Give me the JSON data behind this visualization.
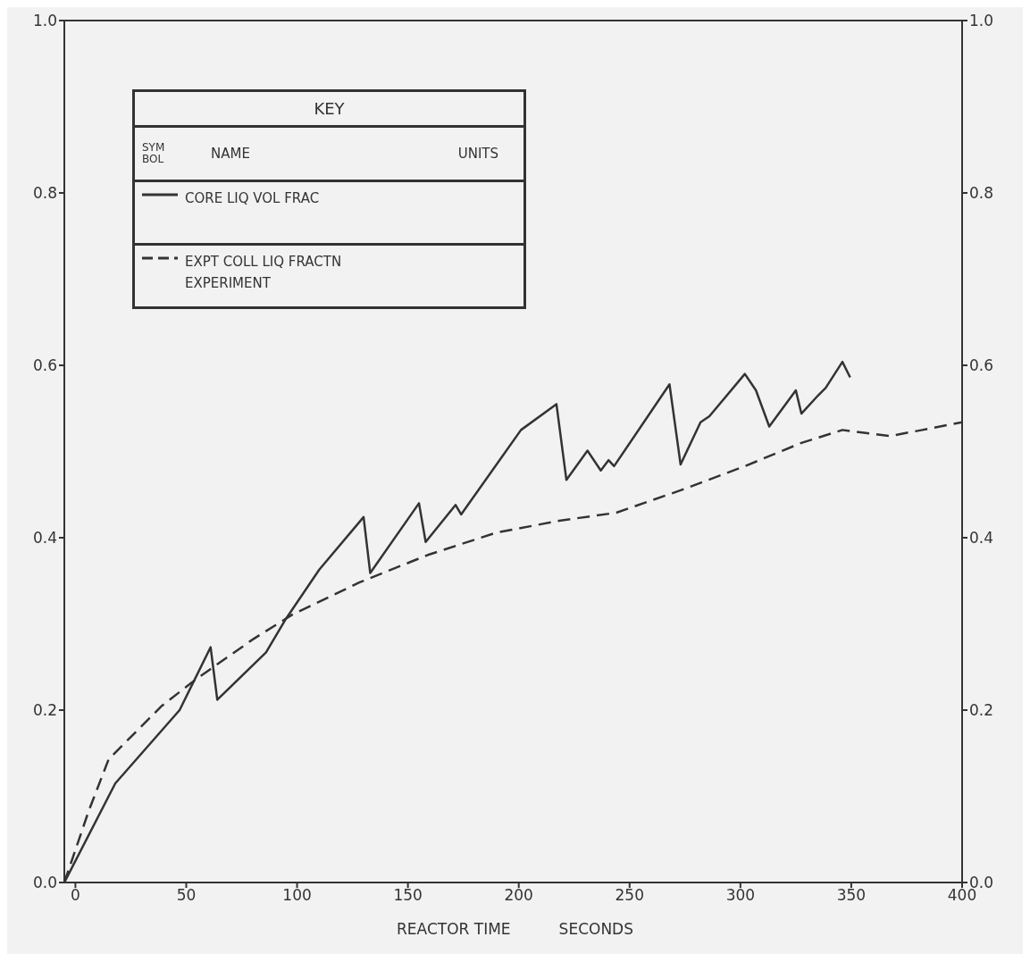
{
  "chart_data": {
    "type": "line",
    "xlabel": "REACTOR TIME          SECONDS",
    "legend_title": "KEY",
    "legend": "top left",
    "marker": "none",
    "annotations": [
      "SYMBOL",
      "NAME",
      "UNITS"
    ],
    "xlim": [
      -5,
      400
    ],
    "xticks": [
      0,
      50,
      100,
      150,
      200,
      250,
      300,
      350,
      400
    ],
    "ylim": [
      0,
      1
    ],
    "yticks": [
      {
        "value": 0,
        "label": "0.0"
      },
      {
        "value": 0.2,
        "label": "0.2"
      },
      {
        "value": 0.4,
        "label": "0.4"
      },
      {
        "value": 0.6,
        "label": "0.6"
      },
      {
        "value": 0.8,
        "label": "0.8"
      },
      {
        "value": 1,
        "label": "1.0"
      }
    ],
    "y2lim": [
      0,
      1
    ],
    "y2ticks": [
      {
        "value": 0,
        "label": "0.0"
      },
      {
        "value": 0.2,
        "label": "0.2"
      },
      {
        "value": 0.4,
        "label": "0.4"
      },
      {
        "value": 0.6,
        "label": "0.6"
      },
      {
        "value": 0.8,
        "label": "0.8"
      },
      {
        "value": 1,
        "label": "1.0"
      }
    ],
    "series": [
      {
        "name": "CORE LIQ VOL FRAC",
        "color": "#333333",
        "line_style": "solid",
        "x": [
          -5,
          18,
          47,
          61,
          64,
          86,
          95,
          110,
          130,
          133,
          155,
          158,
          171.5,
          174,
          201,
          217,
          221.5,
          231,
          237,
          240.5,
          243,
          268,
          273,
          282,
          286,
          302,
          307,
          313,
          325,
          327.5,
          335,
          338.5,
          346,
          349.5
        ],
        "values": [
          0,
          0.115,
          0.2,
          0.273,
          0.212,
          0.267,
          0.306,
          0.363,
          0.424,
          0.359,
          0.44,
          0.395,
          0.438,
          0.427,
          0.525,
          0.555,
          0.467,
          0.501,
          0.478,
          0.49,
          0.483,
          0.578,
          0.485,
          0.534,
          0.541,
          0.59,
          0.571,
          0.529,
          0.571,
          0.544,
          0.565,
          0.574,
          0.604,
          0.586
        ]
      },
      {
        "name": "EXPT COLL LIQ FRACTN EXPERIMENT",
        "color": "#333333",
        "line_style": "dashed",
        "x": [
          -5,
          6,
          15,
          39,
          54.5,
          80,
          98,
          128,
          159,
          190,
          219,
          244,
          273,
          302,
          327.5,
          346,
          355,
          367.5,
          382,
          400
        ],
        "values": [
          0,
          0.083,
          0.143,
          0.205,
          0.236,
          0.282,
          0.311,
          0.348,
          0.38,
          0.406,
          0.42,
          0.429,
          0.455,
          0.483,
          0.51,
          0.525,
          0.522,
          0.518,
          0.525,
          0.534
        ]
      }
    ]
  }
}
